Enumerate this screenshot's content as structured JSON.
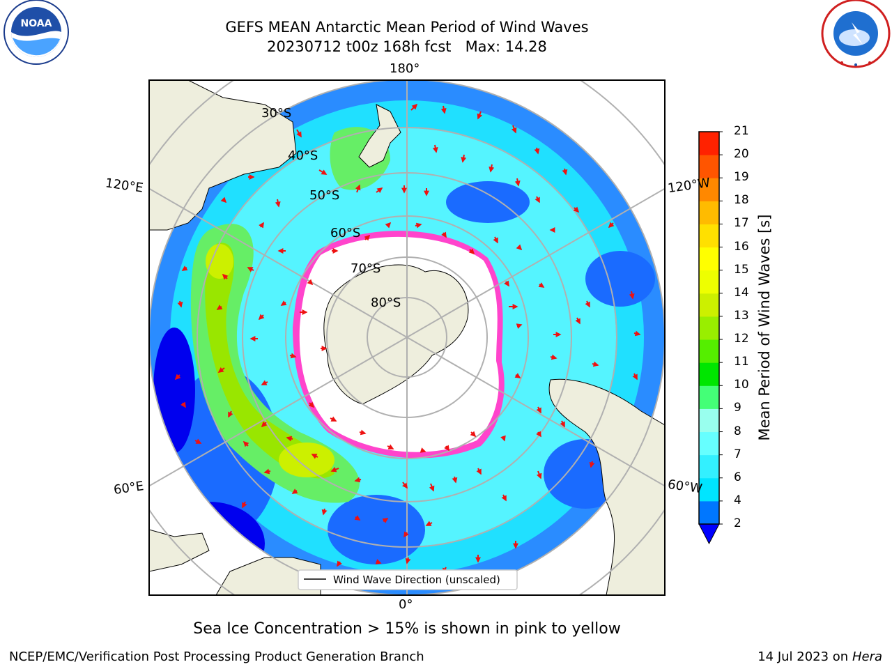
{
  "header": {
    "title_line1": "GEFS MEAN Antarctic Mean Period of Wind Waves",
    "title_line2": "20230712 t00z 168h fcst   Max: 14.28"
  },
  "logos": {
    "left": "noara-logo",
    "right": "nws-logo"
  },
  "map": {
    "lon_labels": [
      "180°",
      "120°E",
      "120°W",
      "60°E",
      "60°W",
      "0°"
    ],
    "lat_labels": [
      "30°S",
      "40°S",
      "50°S",
      "60°S",
      "70°S",
      "80°S"
    ],
    "legend_label": "Wind Wave Direction (unscaled)",
    "ice_note": "Sea Ice Concentration > 15% is shown in pink to yellow",
    "colors": {
      "land": "#eeeedd",
      "arrow": "#ee1111",
      "grid": "#b0b0b0",
      "ice_fill": "#ffffff",
      "ice_edge_pink": "#ff44cc",
      "ice_edge_yellow": "#ffd700"
    }
  },
  "colorbar": {
    "label": "Mean Period of Wind Waves [s]",
    "ticks": [
      "2",
      "4",
      "6",
      "7",
      "8",
      "9",
      "10",
      "11",
      "12",
      "13",
      "14",
      "15",
      "16",
      "17",
      "18",
      "19",
      "20",
      "21"
    ],
    "colors": [
      "#0077ff",
      "#00e5ff",
      "#33f0ff",
      "#66ffff",
      "#99ffee",
      "#44ff77",
      "#00e600",
      "#55ee00",
      "#99ee00",
      "#ccf000",
      "#eeff00",
      "#ffff00",
      "#ffe000",
      "#ffbb00",
      "#ff8800",
      "#ff5500",
      "#ff2200"
    ],
    "underflow_color": "#0000ff"
  },
  "footer": {
    "left": "NCEP/EMC/Verification Post Processing Product Generation Branch",
    "right_prefix": "14 Jul 2023 on ",
    "right_host": "Hera"
  }
}
